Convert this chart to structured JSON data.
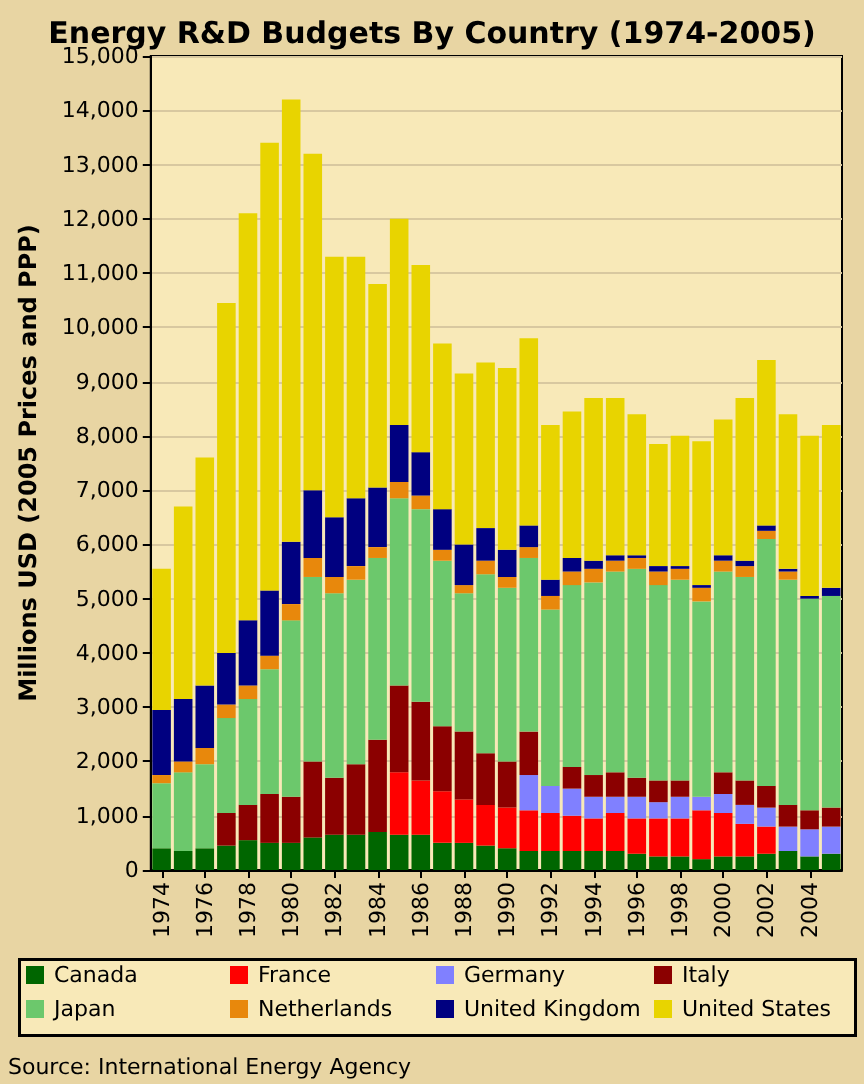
{
  "chart_data": {
    "type": "bar",
    "title": "Energy R&D Budgets By Country (1974-2005)",
    "ylabel": "Millions USD (2005 Prices and PPP)",
    "categories": [
      "1974",
      null,
      "1976",
      null,
      "1978",
      null,
      "1980",
      null,
      "1982",
      null,
      "1984",
      null,
      "1986",
      null,
      "1988",
      null,
      "1990",
      null,
      "1992",
      null,
      "1994",
      null,
      "1996",
      null,
      "1998",
      null,
      "2000",
      null,
      "2002",
      null,
      "2004",
      null
    ],
    "series": [
      {
        "name": "Canada",
        "color": "#006600",
        "values": [
          400,
          350,
          400,
          450,
          550,
          500,
          500,
          600,
          650,
          650,
          700,
          650,
          650,
          500,
          500,
          450,
          400,
          350,
          350,
          350,
          350,
          350,
          300,
          250,
          250,
          200,
          250,
          250,
          300,
          350,
          250,
          300
        ]
      },
      {
        "name": "France",
        "color": "#ff0000",
        "values": [
          null,
          null,
          null,
          null,
          null,
          null,
          null,
          null,
          null,
          null,
          null,
          1150,
          1000,
          950,
          800,
          750,
          750,
          750,
          700,
          650,
          600,
          700,
          650,
          700,
          700,
          900,
          800,
          600,
          500,
          null,
          null,
          null
        ]
      },
      {
        "name": "Germany",
        "color": "#8080ff",
        "values": [
          null,
          null,
          null,
          null,
          null,
          null,
          null,
          null,
          null,
          null,
          null,
          null,
          null,
          null,
          null,
          null,
          null,
          650,
          500,
          500,
          400,
          300,
          400,
          300,
          400,
          250,
          350,
          350,
          350,
          450,
          500,
          500
        ]
      },
      {
        "name": "Italy",
        "color": "#8b0000",
        "values": [
          null,
          null,
          null,
          600,
          650,
          900,
          850,
          1400,
          1050,
          1300,
          1700,
          1600,
          1450,
          1200,
          1250,
          950,
          850,
          800,
          null,
          400,
          400,
          450,
          350,
          400,
          300,
          null,
          400,
          450,
          400,
          400,
          350,
          350
        ]
      },
      {
        "name": "Japan",
        "color": "#6cc86c",
        "values": [
          1200,
          1450,
          1550,
          1750,
          1950,
          2300,
          3250,
          3400,
          3400,
          3400,
          3350,
          3450,
          3550,
          3050,
          2550,
          3300,
          3200,
          3200,
          3250,
          3350,
          3550,
          3700,
          3850,
          3600,
          3700,
          3600,
          3700,
          3750,
          4550,
          4150,
          3900,
          3900
        ]
      },
      {
        "name": "Netherlands",
        "color": "#e8880c",
        "values": [
          150,
          200,
          300,
          250,
          250,
          250,
          300,
          350,
          300,
          250,
          200,
          300,
          250,
          200,
          150,
          250,
          200,
          200,
          250,
          250,
          250,
          200,
          200,
          250,
          200,
          250,
          200,
          200,
          150,
          150,
          null,
          null
        ]
      },
      {
        "name": "United Kingdom",
        "color": "#000080",
        "values": [
          1200,
          1150,
          1150,
          950,
          1200,
          1200,
          1150,
          1250,
          1100,
          1250,
          1100,
          1050,
          800,
          750,
          750,
          600,
          500,
          400,
          300,
          250,
          150,
          100,
          50,
          100,
          50,
          50,
          100,
          100,
          100,
          50,
          50,
          150
        ]
      },
      {
        "name": "United States",
        "color": "#e8d400",
        "values": [
          2600,
          3550,
          4200,
          6450,
          7500,
          8250,
          8150,
          6200,
          4800,
          4450,
          3750,
          3800,
          3450,
          3050,
          3150,
          3050,
          3350,
          3450,
          2850,
          2700,
          3000,
          2900,
          2600,
          2250,
          2400,
          2650,
          2500,
          3000,
          3050,
          2850,
          2950,
          3000
        ]
      }
    ],
    "stacked": true,
    "ylim": [
      0,
      15000
    ],
    "yticks": [
      {
        "value": 0,
        "label": "0"
      },
      {
        "value": 1000,
        "label": "1,000"
      },
      {
        "value": 2000,
        "label": "2,000"
      },
      {
        "value": 3000,
        "label": "3,000"
      },
      {
        "value": 4000,
        "label": "4,000"
      },
      {
        "value": 5000,
        "label": "5,000"
      },
      {
        "value": 6000,
        "label": "6,000"
      },
      {
        "value": 7000,
        "label": "7,000"
      },
      {
        "value": 8000,
        "label": "8,000"
      },
      {
        "value": 9000,
        "label": "9,000"
      },
      {
        "value": 10000,
        "label": "10,000"
      },
      {
        "value": 11000,
        "label": "11,000"
      },
      {
        "value": 12000,
        "label": "12,000"
      },
      {
        "value": 13000,
        "label": "13,000"
      },
      {
        "value": 14000,
        "label": "14,000"
      },
      {
        "value": 15000,
        "label": "15,000"
      }
    ],
    "grid": "y",
    "legend": "bottom",
    "annotations": [
      "Source: International Energy Agency"
    ]
  }
}
